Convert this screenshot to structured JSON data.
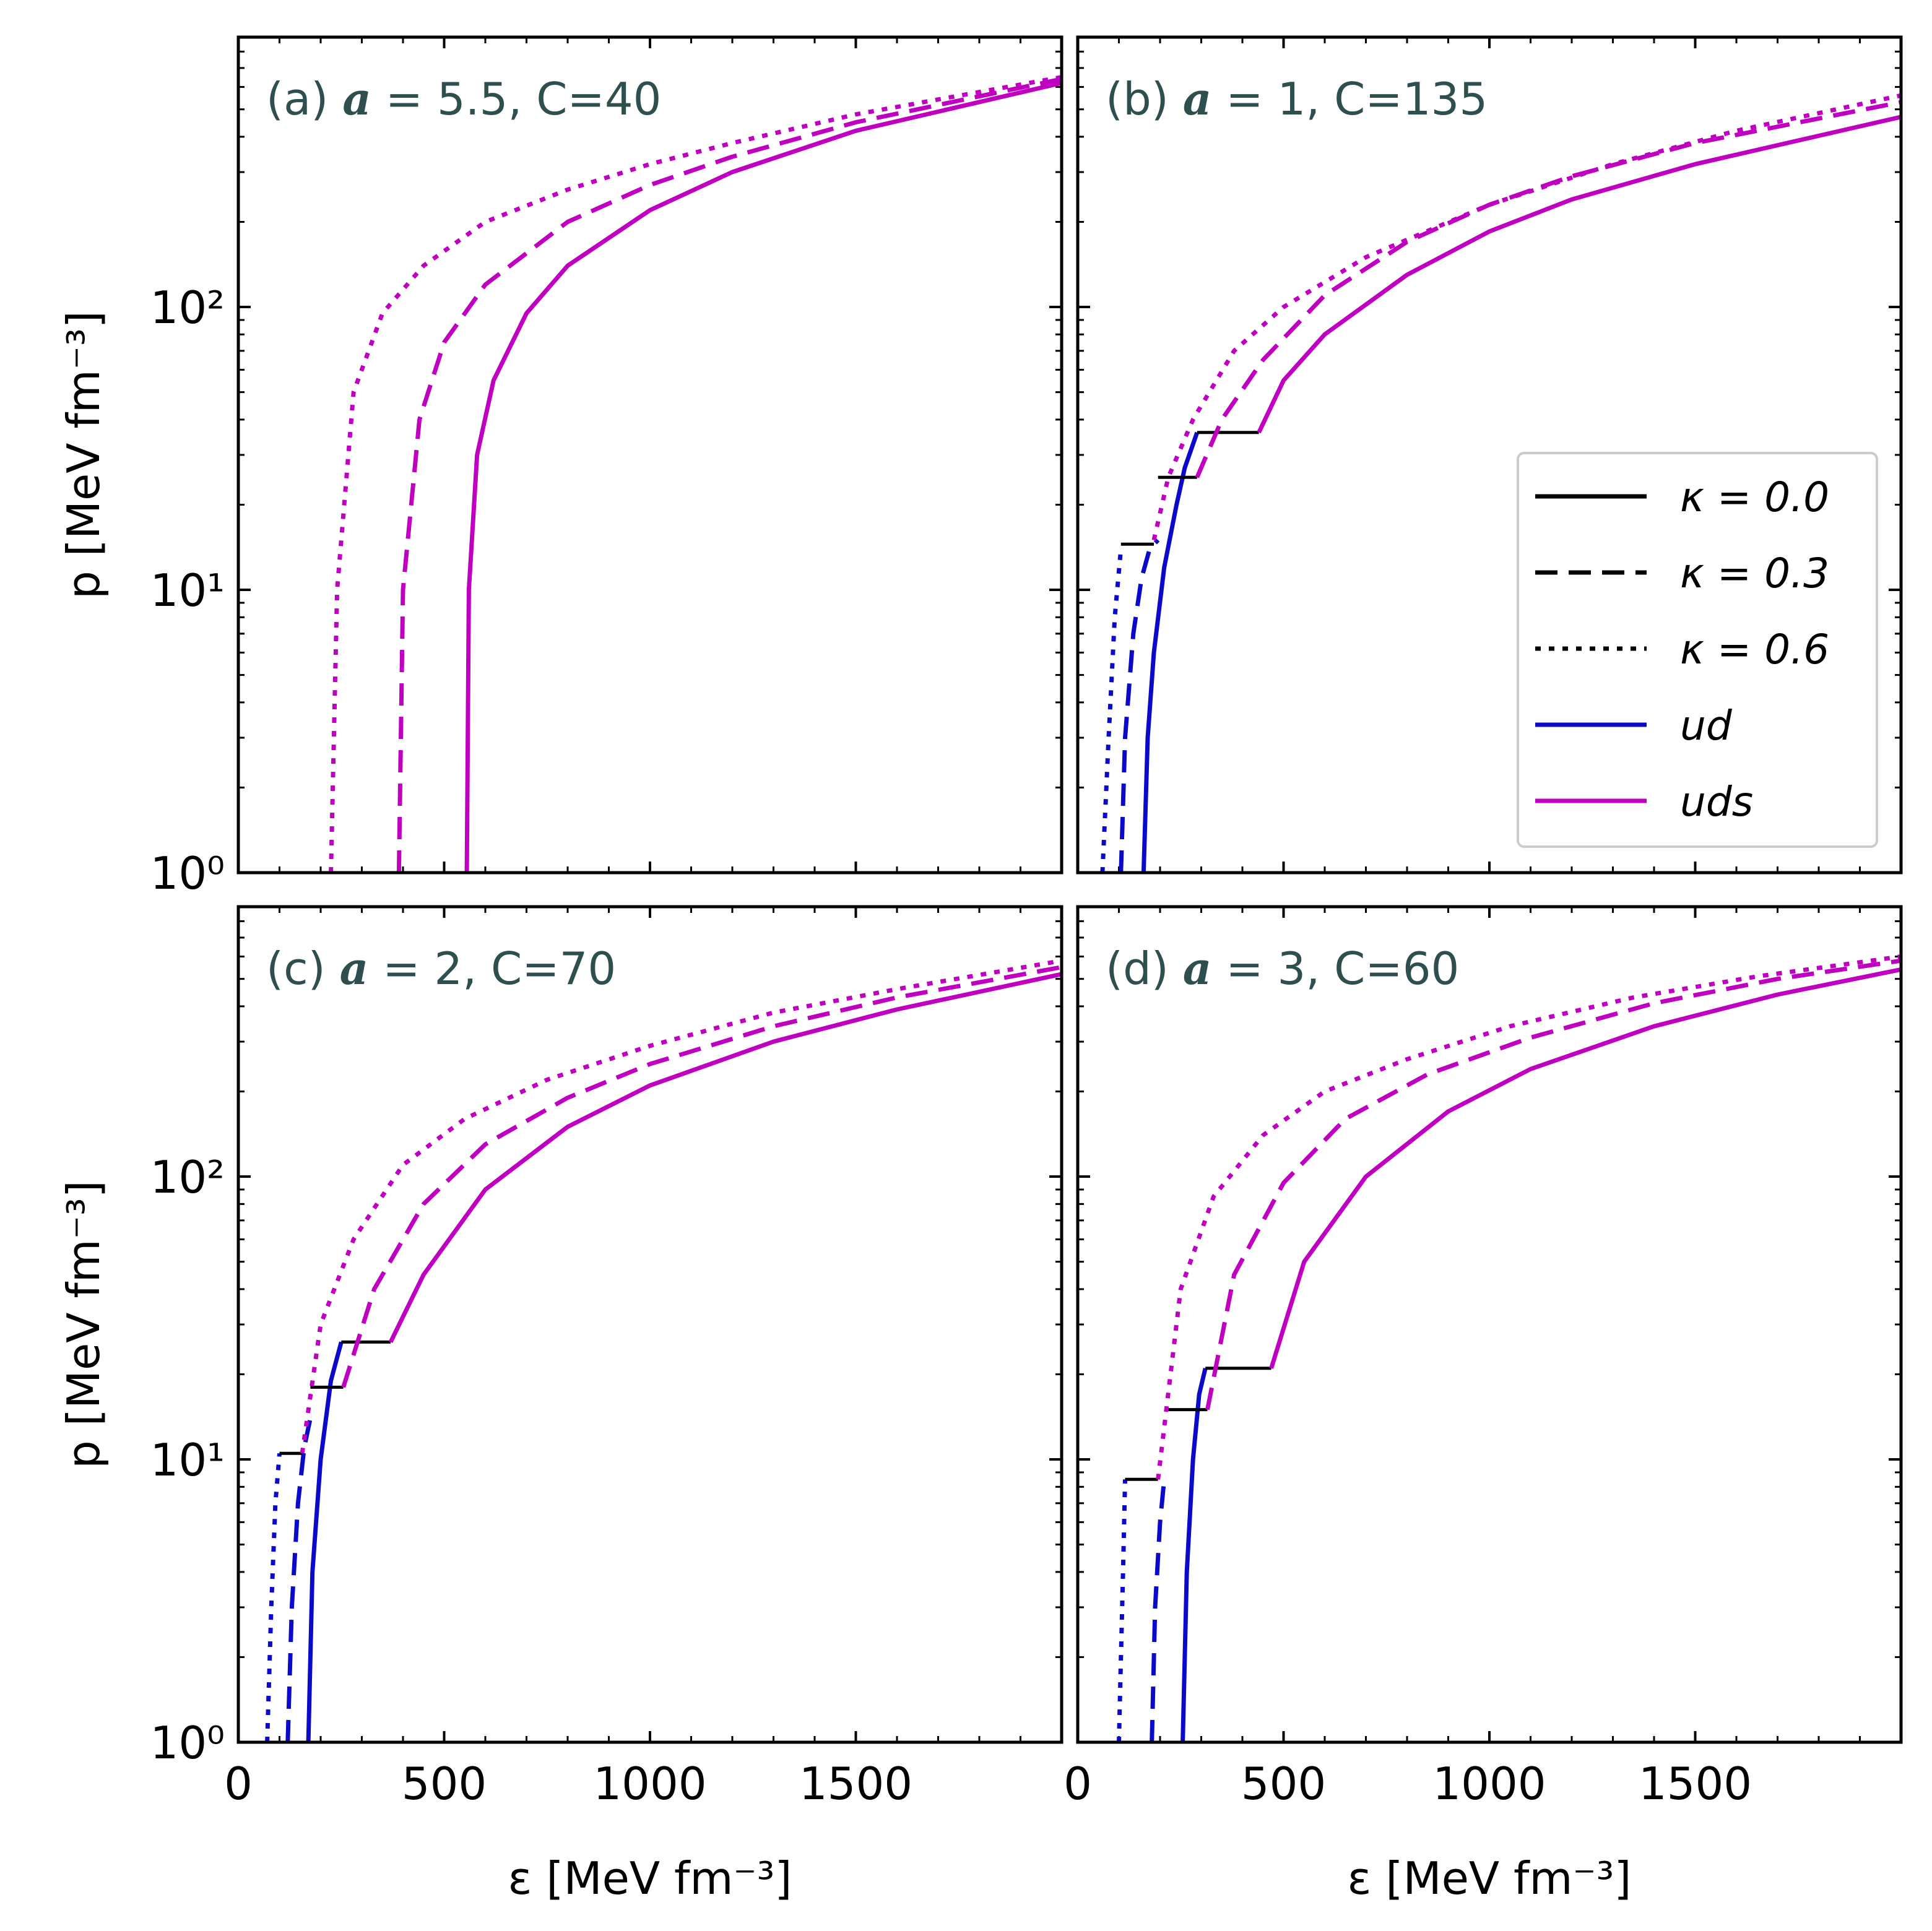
{
  "chart_data": {
    "type": "line",
    "xlabel": "ε [MeV fm⁻³]",
    "ylabel": "p [MeV fm⁻³]",
    "xlim": [
      0,
      2000
    ],
    "ylim": [
      1,
      900
    ],
    "yscale": "log",
    "x_ticks": [
      "0",
      "500",
      "1000",
      "1500"
    ],
    "y_ticks": [
      "10⁰",
      "10¹",
      "10²"
    ],
    "line_styles": {
      "kappa_0.0": "solid",
      "kappa_0.3": "dashed",
      "kappa_0.6": "dotted"
    },
    "colors": {
      "ud": "#0a0ac8",
      "uds": "#c000c0",
      "phase_transition": "#000000"
    },
    "legend": {
      "position": "lower-right of panel (b)",
      "entries": [
        "κ = 0.0",
        "κ = 0.3",
        "κ = 0.6",
        "ud",
        "uds"
      ]
    },
    "panels": [
      {
        "label": "(a)",
        "a": "5.5",
        "C": "40",
        "series": [
          {
            "kappa": "0.0",
            "phase": "uds",
            "x": [
              555,
              560,
              580,
              620,
              700,
              800,
              1000,
              1200,
              1500,
              2000
            ],
            "y": [
              1,
              10,
              30,
              55,
              95,
              140,
              220,
              300,
              420,
              620
            ]
          },
          {
            "kappa": "0.3",
            "phase": "uds",
            "x": [
              390,
              400,
              440,
              500,
              600,
              800,
              1000,
              1200,
              1500,
              2000
            ],
            "y": [
              1,
              10,
              40,
              75,
              120,
              200,
              270,
              340,
              450,
              640
            ]
          },
          {
            "kappa": "0.6",
            "phase": "uds",
            "x": [
              225,
              240,
              280,
              350,
              450,
              600,
              800,
              1000,
              1200,
              1500,
              2000
            ],
            "y": [
              1,
              10,
              50,
              95,
              140,
              200,
              260,
              320,
              380,
              480,
              650
            ]
          }
        ]
      },
      {
        "label": "(b)",
        "a": "1",
        "C": "135",
        "series": [
          {
            "kappa": "0.0",
            "phase": "ud",
            "x": [
              160,
              170,
              185,
              210,
              240,
              260,
              290
            ],
            "y": [
              1,
              3,
              6,
              12,
              20,
              27,
              36
            ]
          },
          {
            "kappa": "0.0",
            "phase": "transition",
            "x": [
              290,
              440
            ],
            "y": [
              36,
              36
            ]
          },
          {
            "kappa": "0.0",
            "phase": "uds",
            "x": [
              440,
              500,
              600,
              800,
              1000,
              1200,
              1500,
              2000
            ],
            "y": [
              36,
              55,
              80,
              130,
              185,
              240,
              320,
              470
            ]
          },
          {
            "kappa": "0.3",
            "phase": "ud",
            "x": [
              105,
              115,
              135,
              155,
              175,
              195
            ],
            "y": [
              1,
              3,
              7,
              11,
              14,
              15
            ]
          },
          {
            "kappa": "0.3",
            "phase": "transition",
            "x": [
              195,
              290
            ],
            "y": [
              25,
              25
            ]
          },
          {
            "kappa": "0.3",
            "phase": "uds",
            "x": [
              290,
              350,
              450,
              600,
              800,
              1000,
              1200,
              1500,
              2000
            ],
            "y": [
              25,
              40,
              65,
              110,
              170,
              230,
              290,
              380,
              530
            ]
          },
          {
            "kappa": "0.6",
            "phase": "ud",
            "x": [
              60,
              75,
              90,
              105
            ],
            "y": [
              1,
              3,
              8,
              14
            ]
          },
          {
            "kappa": "0.6",
            "phase": "transition",
            "x": [
              105,
              185
            ],
            "y": [
              14.5,
              14.5
            ]
          },
          {
            "kappa": "0.6",
            "phase": "uds",
            "x": [
              185,
              220,
              280,
              380,
              500,
              700,
              1000,
              1300,
              1600,
              2000
            ],
            "y": [
              15,
              25,
              40,
              70,
              100,
              150,
              230,
              320,
              420,
              560
            ]
          }
        ]
      },
      {
        "label": "(c)",
        "a": "2",
        "C": "70",
        "series": [
          {
            "kappa": "0.0",
            "phase": "ud",
            "x": [
              170,
              180,
              200,
              225,
              250
            ],
            "y": [
              1,
              4,
              10,
              19,
              26
            ]
          },
          {
            "kappa": "0.0",
            "phase": "transition",
            "x": [
              250,
              370
            ],
            "y": [
              26,
              26
            ]
          },
          {
            "kappa": "0.0",
            "phase": "uds",
            "x": [
              370,
              450,
              600,
              800,
              1000,
              1300,
              1600,
              2000
            ],
            "y": [
              26,
              45,
              90,
              150,
              210,
              300,
              390,
              520
            ]
          },
          {
            "kappa": "0.3",
            "phase": "ud",
            "x": [
              120,
              130,
              145,
              160,
              175
            ],
            "y": [
              1,
              3,
              7,
              11,
              14
            ]
          },
          {
            "kappa": "0.3",
            "phase": "transition",
            "x": [
              175,
              255
            ],
            "y": [
              18,
              18
            ]
          },
          {
            "kappa": "0.3",
            "phase": "uds",
            "x": [
              255,
              330,
              450,
              600,
              800,
              1000,
              1300,
              1600,
              2000
            ],
            "y": [
              18,
              40,
              80,
              130,
              190,
              250,
              340,
              430,
              550
            ]
          },
          {
            "kappa": "0.6",
            "phase": "ud",
            "x": [
              70,
              80,
              90,
              100
            ],
            "y": [
              1,
              3,
              7,
              10.5
            ]
          },
          {
            "kappa": "0.6",
            "phase": "transition",
            "x": [
              100,
              155
            ],
            "y": [
              10.5,
              10.5
            ]
          },
          {
            "kappa": "0.6",
            "phase": "uds",
            "x": [
              155,
              200,
              280,
              400,
              550,
              750,
              1000,
              1300,
              1600,
              2000
            ],
            "y": [
              10.5,
              30,
              60,
              110,
              160,
              220,
              290,
              380,
              460,
              580
            ]
          }
        ]
      },
      {
        "label": "(d)",
        "a": "3",
        "C": "60",
        "series": [
          {
            "kappa": "0.0",
            "phase": "ud",
            "x": [
              255,
              265,
              280,
              295,
              310
            ],
            "y": [
              1,
              4,
              10,
              17,
              21
            ]
          },
          {
            "kappa": "0.0",
            "phase": "transition",
            "x": [
              310,
              470
            ],
            "y": [
              21,
              21
            ]
          },
          {
            "kappa": "0.0",
            "phase": "uds",
            "x": [
              470,
              550,
              700,
              900,
              1100,
              1400,
              1700,
              2000
            ],
            "y": [
              21,
              50,
              100,
              170,
              240,
              340,
              440,
              540
            ]
          },
          {
            "kappa": "0.3",
            "phase": "ud",
            "x": [
              180,
              188,
              200,
              210,
              220
            ],
            "y": [
              1,
              3,
              6,
              8.5,
              8.5
            ]
          },
          {
            "kappa": "0.3",
            "phase": "transition",
            "x": [
              220,
              315
            ],
            "y": [
              15,
              15
            ]
          },
          {
            "kappa": "0.3",
            "phase": "uds",
            "x": [
              315,
              380,
              500,
              650,
              850,
              1100,
              1400,
              1700,
              2000
            ],
            "y": [
              15,
              45,
              95,
              160,
              230,
              310,
              410,
              500,
              580
            ]
          },
          {
            "kappa": "0.6",
            "phase": "ud",
            "x": [
              100,
              105,
              110,
              115
            ],
            "y": [
              1,
              2,
              4,
              8.5
            ]
          },
          {
            "kappa": "0.6",
            "phase": "transition",
            "x": [
              115,
              195
            ],
            "y": [
              8.5,
              8.5
            ]
          },
          {
            "kappa": "0.6",
            "phase": "uds",
            "x": [
              195,
              250,
              330,
              450,
              600,
              800,
              1050,
              1350,
              1650,
              2000
            ],
            "y": [
              8.5,
              40,
              85,
              140,
              200,
              260,
              340,
              430,
              510,
              600
            ]
          }
        ]
      }
    ]
  }
}
